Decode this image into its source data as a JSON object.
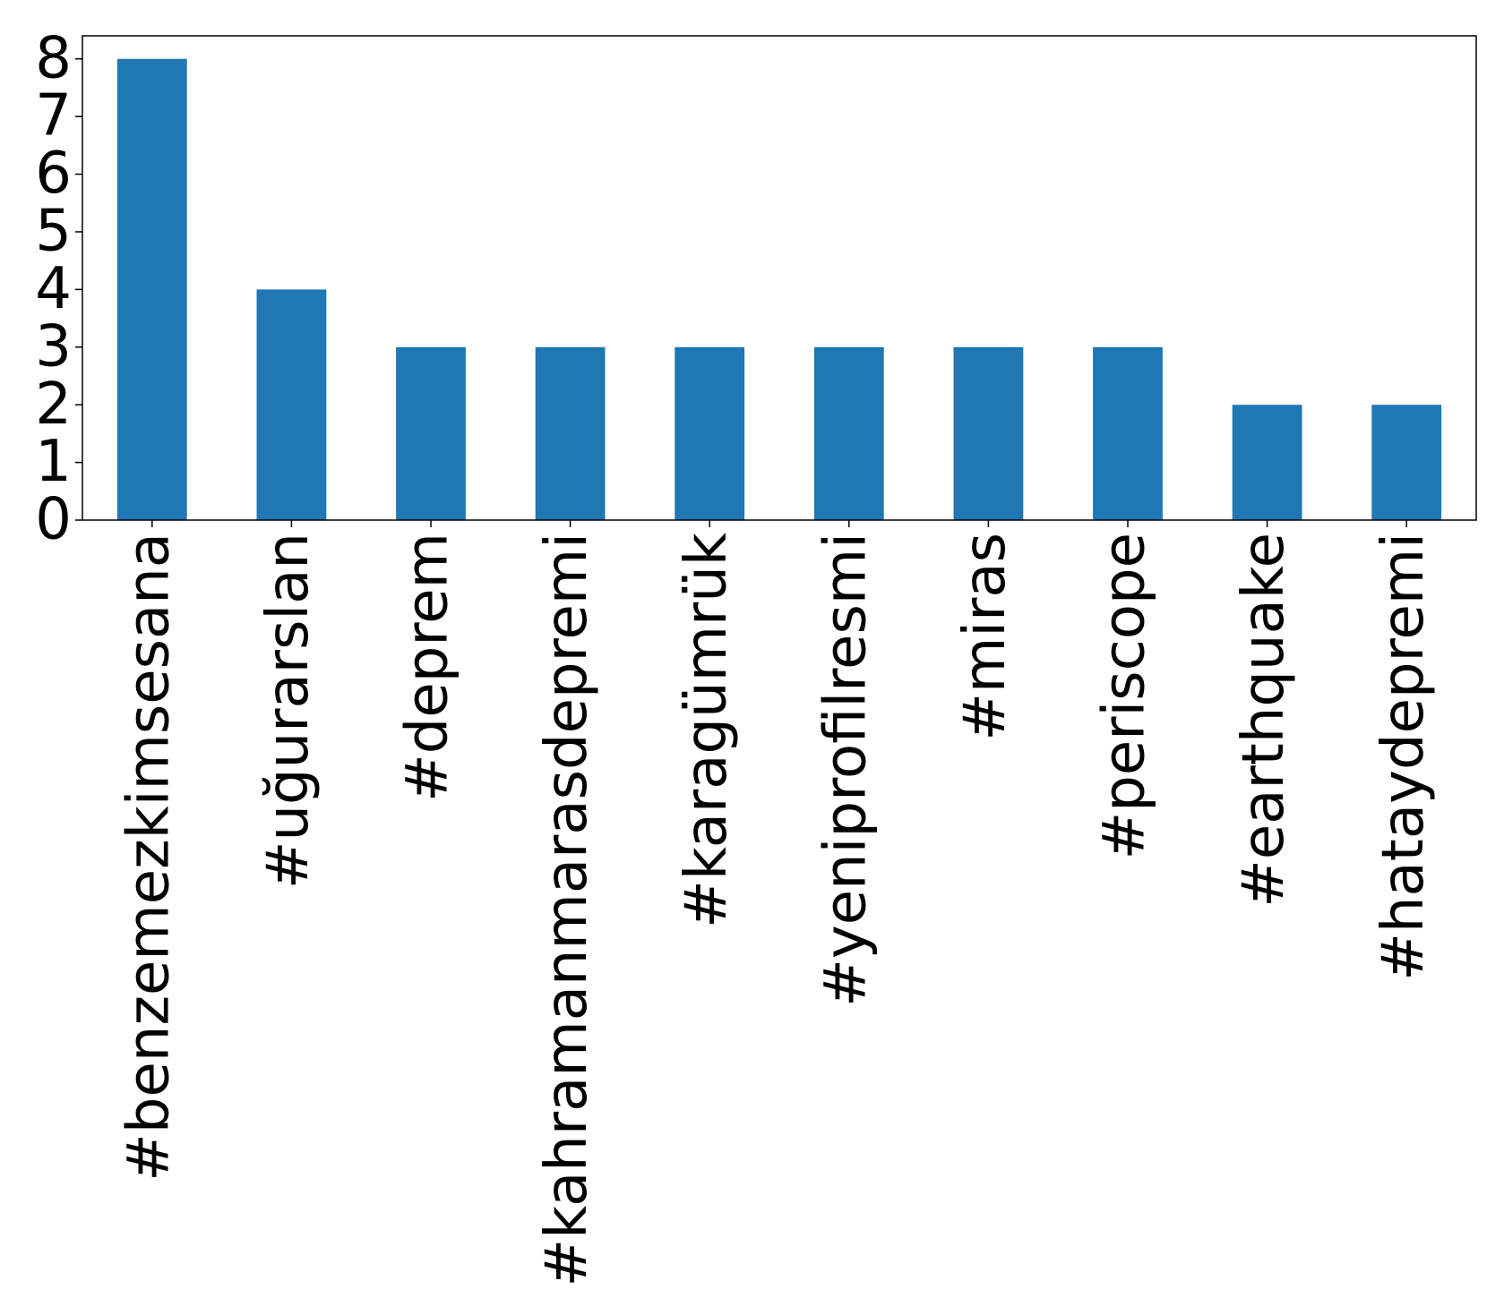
{
  "chart_data": {
    "type": "bar",
    "categories": [
      "#benzemezkimsesana",
      "#uğurarslan",
      "#deprem",
      "#kahramanmarasdepremi",
      "#karagümrük",
      "#yeniprofilresmi",
      "#miras",
      "#periscope",
      "#earthquake",
      "#hataydepremi"
    ],
    "values": [
      8,
      4,
      3,
      3,
      3,
      3,
      3,
      3,
      2,
      2
    ],
    "color": "#1f77b4",
    "ylim": [
      0,
      8.4
    ],
    "yticks": [
      0,
      1,
      2,
      3,
      4,
      5,
      6,
      7,
      8
    ],
    "grid": false
  }
}
